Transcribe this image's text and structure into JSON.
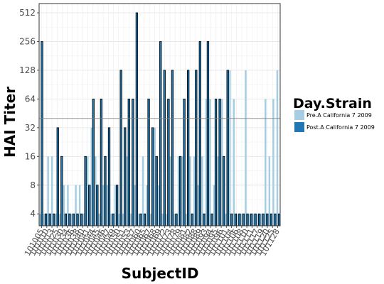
{
  "chart_data": {
    "type": "bar",
    "xlabel": "SubjectID",
    "ylabel": "HAI Titer",
    "y_scale": "log2",
    "ylim": [
      3,
      640
    ],
    "yticks": [
      4,
      8,
      16,
      32,
      64,
      128,
      256,
      512
    ],
    "reference_line": 40,
    "grid": true,
    "legend": {
      "title": "Day.Strain",
      "placement": "right",
      "entries": [
        {
          "label": "Pre.A California 7 2009",
          "color": "#a6cee3"
        },
        {
          "label": "Post.A California 7 2009",
          "color": "#1f78b4"
        }
      ]
    },
    "categories": [
      "101005",
      "101010",
      "101011",
      "101012",
      "101013",
      "101025",
      "101026",
      "101030",
      "101034",
      "101036",
      "101038",
      "101039",
      "101040",
      "101041",
      "101042",
      "101043",
      "101044",
      "101045",
      "101047",
      "101049",
      "101050",
      "101051",
      "101053",
      "101055",
      "101057",
      "101059",
      "101060",
      "101065",
      "101067",
      "101068",
      "101069",
      "101070",
      "101073",
      "101075",
      "101077",
      "101078",
      "101079",
      "101081",
      "101082",
      "101084",
      "101085",
      "101088",
      "101093",
      "101094",
      "101095",
      "101099",
      "101100",
      "101103",
      "101104",
      "101106",
      "101107",
      "101108",
      "101113",
      "101115",
      "101117",
      "101119",
      "101120",
      "101124",
      "101125",
      "101126",
      "101128"
    ],
    "tick_labels_shown": [
      "101005",
      "101010",
      "101013",
      "101025",
      "101030",
      "101034",
      "101036",
      "101038",
      "101040",
      "101041",
      "101044",
      "101045",
      "101046",
      "101047",
      "101049",
      "101050",
      "101051",
      "101053",
      "101057",
      "101060",
      "101065",
      "101067",
      "101068",
      "101069",
      "101072",
      "101073",
      "101078",
      "101079",
      "101081",
      "101082",
      "101088",
      "101089",
      "101093",
      "101094",
      "101095",
      "101096",
      "101101",
      "101104",
      "101106",
      "101108",
      "101110",
      "101111",
      "101117",
      "101119",
      "101120",
      "101125",
      "101128"
    ],
    "series": [
      {
        "name": "Pre.A California 7 2009",
        "values": [
          4,
          4,
          16,
          16,
          4,
          4,
          8,
          8,
          4,
          8,
          8,
          4,
          16,
          32,
          16,
          4,
          8,
          8,
          4,
          8,
          4,
          4,
          16,
          4,
          8,
          4,
          16,
          8,
          4,
          32,
          8,
          4,
          4,
          16,
          4,
          16,
          16,
          4,
          16,
          16,
          8,
          16,
          64,
          64,
          8,
          16,
          64,
          4,
          128,
          64,
          4,
          4,
          128,
          4,
          4,
          4,
          4,
          64,
          16,
          64,
          128
        ]
      },
      {
        "name": "Post.A California 7 2009",
        "values": [
          256,
          4,
          4,
          4,
          32,
          16,
          4,
          4,
          4,
          4,
          4,
          16,
          8,
          64,
          8,
          64,
          16,
          32,
          4,
          8,
          128,
          32,
          64,
          64,
          512,
          4,
          4,
          64,
          32,
          16,
          256,
          128,
          64,
          128,
          4,
          16,
          64,
          128,
          4,
          128,
          256,
          4,
          256,
          4,
          64,
          64,
          16,
          128,
          4,
          4,
          4,
          4,
          4,
          4,
          4,
          4,
          4,
          4,
          4,
          4,
          4
        ]
      }
    ]
  }
}
